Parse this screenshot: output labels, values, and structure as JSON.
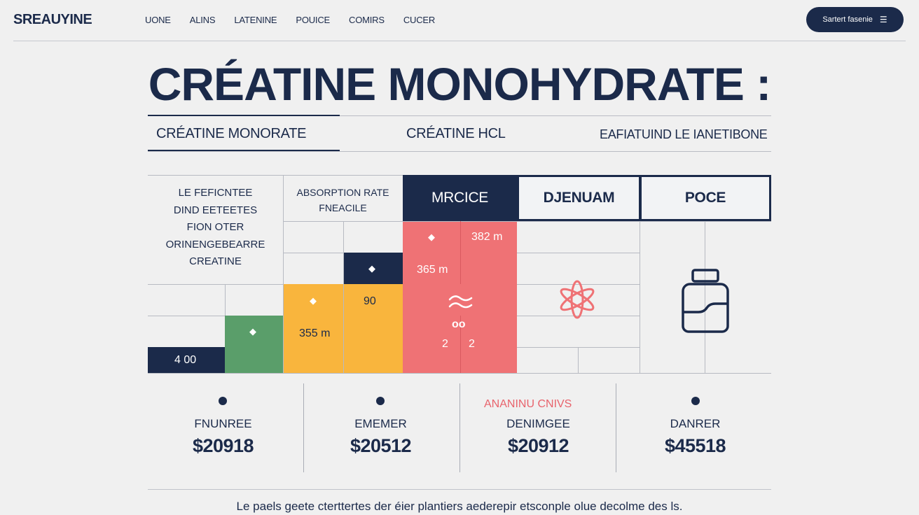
{
  "brand": {
    "logo": "SREAUYINE"
  },
  "nav": {
    "items": [
      "UONE",
      "ALINS",
      "LATENINE",
      "POUICE",
      "COMIRS",
      "CUCER"
    ]
  },
  "cta": {
    "label": "Sartert fasenie",
    "icon": "menu-lines-icon"
  },
  "page": {
    "title": "CRÉATINE MONOHYDRATE :"
  },
  "tabs": [
    {
      "label": "CRÉATINE MONORATE",
      "active": true
    },
    {
      "label": "CRÉATINE HCL",
      "active": false
    },
    {
      "label": "EAFIATUIND LE IANETIBONE",
      "active": false
    }
  ],
  "table": {
    "description_lines": [
      "LE FEFICNTEE",
      "DIND EETEETES",
      "FION OTER",
      "ORINENGEBEARRE",
      "CREATINE"
    ],
    "absorption_header_lines": [
      "ABSORPTION RATE",
      "FNEACILE"
    ],
    "columns": [
      "MRCICE",
      "DJENUAM",
      "POCE"
    ],
    "values": {
      "red_top": "382 m",
      "red_mid": "365 m",
      "orange_top": "90",
      "orange_bottom": "355 m",
      "navy_bottom": "4 00",
      "red_figure_1": "oo",
      "red_figure_2": "2",
      "red_figure_3": "2"
    },
    "icons": [
      "molecule-icon",
      "supplement-jar-icon",
      "wave-icon"
    ],
    "colors": {
      "navy": "#1b2a4a",
      "red": "#ef7275",
      "orange": "#f9b53d",
      "green": "#5a9e6a"
    }
  },
  "cards": [
    {
      "note": "",
      "name": "FNUNREE",
      "price": "$20918"
    },
    {
      "note": "",
      "name": "EMEMER",
      "price": "$20512"
    },
    {
      "note": "ANANINU CNIVS",
      "name": "DENIMGEE",
      "price": "$20912"
    },
    {
      "note": "",
      "name": "DANRER",
      "price": "$45518"
    }
  ],
  "footer": {
    "text": "Le paels geete cterttertes der éier plantiers aederepir etsconple olue decolme des ls."
  }
}
